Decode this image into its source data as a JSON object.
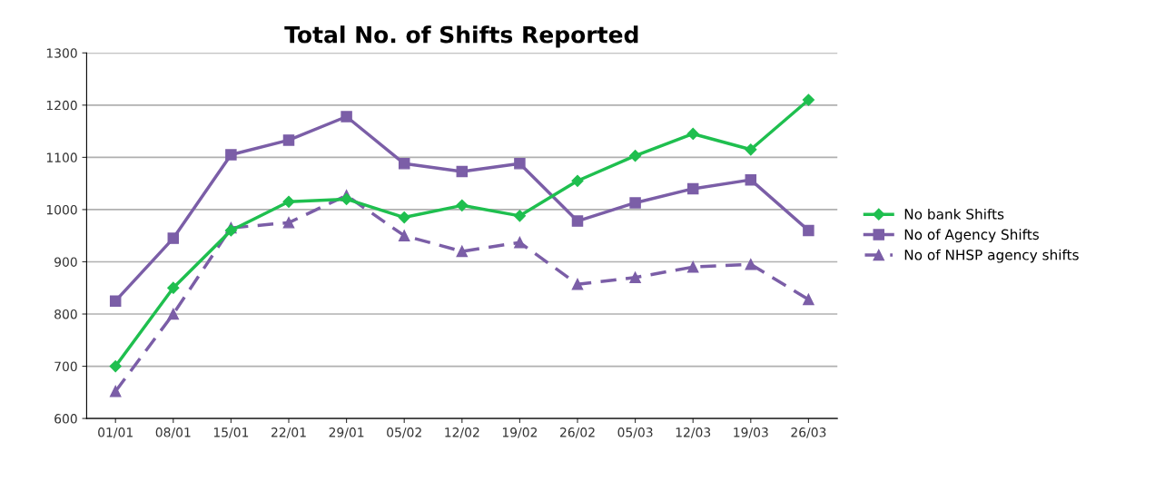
{
  "chart_data": {
    "type": "line",
    "title": "Total No. of Shifts Reported",
    "categories": [
      "01/01",
      "08/01",
      "15/01",
      "22/01",
      "29/01",
      "05/02",
      "12/02",
      "19/02",
      "26/02",
      "05/03",
      "12/03",
      "19/03",
      "26/03"
    ],
    "series": [
      {
        "name": "No bank Shifts",
        "color": "#1fbf4f",
        "marker": "diamond",
        "line_style": "solid",
        "values": [
          700,
          850,
          960,
          1015,
          1020,
          985,
          1008,
          988,
          1055,
          1103,
          1145,
          1115,
          1210
        ]
      },
      {
        "name": "No of Agency Shifts",
        "color": "#7b5ea7",
        "marker": "square",
        "line_style": "solid",
        "values": [
          825,
          945,
          1105,
          1133,
          1178,
          1088,
          1073,
          1088,
          978,
          1013,
          1040,
          1057,
          960
        ]
      },
      {
        "name": "No of NHSP agency shifts",
        "color": "#7b5ea7",
        "marker": "triangle",
        "line_style": "dashed",
        "values": [
          652,
          800,
          965,
          975,
          1027,
          950,
          920,
          937,
          857,
          870,
          890,
          895,
          828
        ]
      }
    ],
    "ylim": [
      600,
      1300
    ],
    "yticks": [
      600,
      700,
      800,
      900,
      1000,
      1100,
      1200,
      1300
    ],
    "grid": "y",
    "legend": "right"
  }
}
